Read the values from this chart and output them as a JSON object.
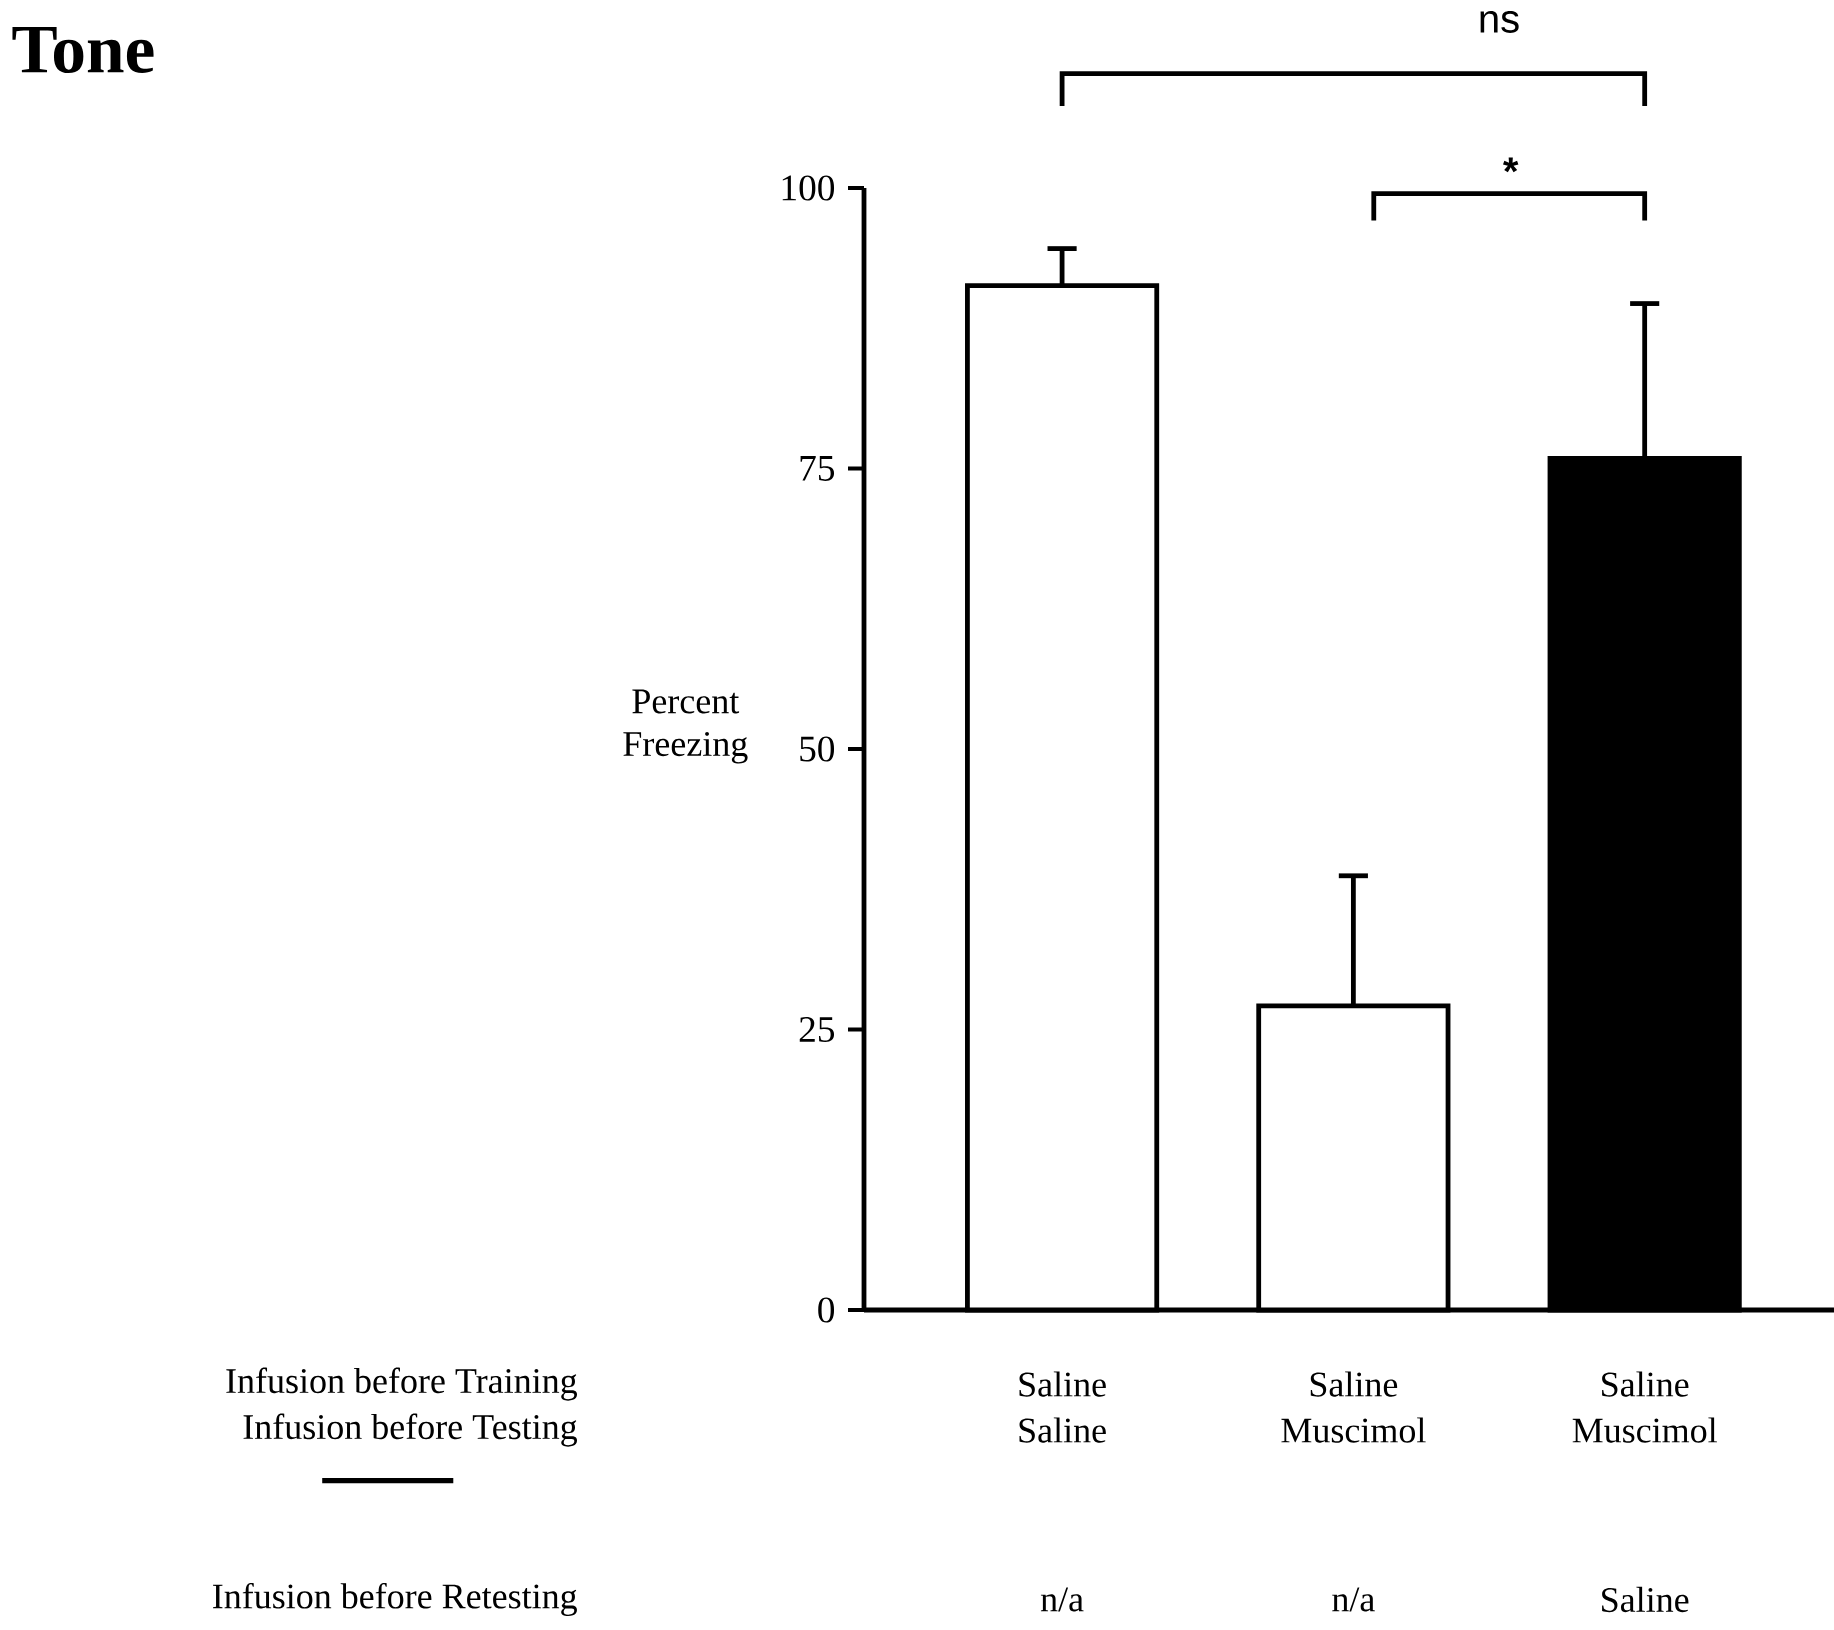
{
  "chart_data": {
    "type": "bar",
    "title": "Tone",
    "ylabel": "Percent Freezing",
    "categories": [
      "Saline",
      "Saline",
      "Saline"
    ],
    "values": [
      91.3,
      27.1,
      75.9
    ],
    "colors": [
      "#ffffff",
      "#ffffff",
      "#000000"
    ],
    "errors": [
      [
        91.3,
        94.6
      ],
      [
        27.1,
        38.7
      ],
      [
        75.9,
        89.7
      ]
    ],
    "ylim": [
      0,
      100
    ],
    "yticks": [
      0,
      25,
      50,
      75,
      100
    ],
    "annotations": [
      "Infusion before Training",
      "Infusion before Testing",
      "Saline",
      "Muscimol",
      "Muscimol",
      "Infusion before Retesting",
      "n/a",
      "n/a",
      "Saline",
      "ns",
      "*"
    ]
  }
}
